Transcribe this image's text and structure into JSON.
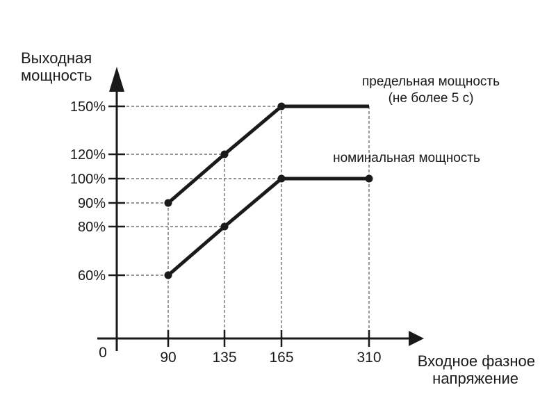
{
  "chart_data": {
    "type": "line",
    "ylabel_lines": [
      "Выходная",
      "мощность"
    ],
    "xlabel_lines": [
      "Входное фазное",
      "напряжение"
    ],
    "origin_label": "0",
    "x_ticks": [
      90,
      135,
      165,
      310
    ],
    "y_ticks": [
      60,
      80,
      90,
      100,
      120,
      150
    ],
    "y_tick_suffix": "%",
    "series": [
      {
        "label_lines": [
          "предельная мощность",
          "(не более 5 с)"
        ],
        "points": [
          [
            90,
            90
          ],
          [
            135,
            120
          ],
          [
            165,
            150
          ],
          [
            310,
            150
          ]
        ],
        "markers": [
          true,
          true,
          true,
          false
        ]
      },
      {
        "label_lines": [
          "номинальная мощность"
        ],
        "points": [
          [
            90,
            60
          ],
          [
            135,
            80
          ],
          [
            165,
            100
          ],
          [
            310,
            100
          ]
        ],
        "markers": [
          true,
          true,
          true,
          true
        ]
      }
    ],
    "line_color": "#1a1a1a",
    "guide_color": "#555555",
    "grid": false
  }
}
